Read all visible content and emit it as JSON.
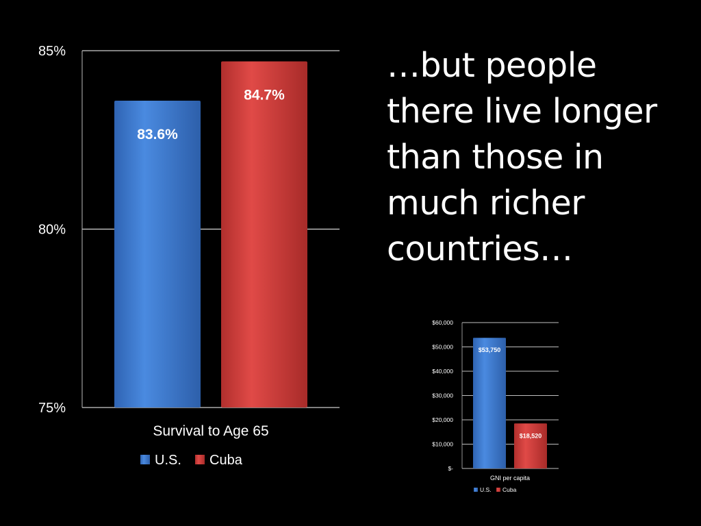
{
  "slide_text": {
    "lines": [
      "…but people",
      "there live longer",
      "than those in",
      "much richer",
      "countries…"
    ]
  },
  "colors": {
    "background": "#000000",
    "us_series": "#3f7fd6",
    "cuba_series": "#d64240",
    "text": "#ffffff",
    "gridline": "#ffffff"
  },
  "chart_data": [
    {
      "type": "bar",
      "title": "",
      "categories": [
        "Survival to Age 65"
      ],
      "series": [
        {
          "name": "U.S.",
          "values": [
            83.6
          ],
          "label": "83.6%"
        },
        {
          "name": "Cuba",
          "values": [
            84.7
          ],
          "label": "84.7%"
        }
      ],
      "xlabel": "",
      "ylabel": "",
      "ylim": [
        75,
        85
      ],
      "yticks": [
        "75%",
        "80%",
        "85%"
      ],
      "ytick_values": [
        75,
        80,
        85
      ],
      "grid": true,
      "legend": "bottom"
    },
    {
      "type": "bar",
      "title": "",
      "categories": [
        "GNI per capita"
      ],
      "series": [
        {
          "name": "U.S.",
          "values": [
            53750
          ],
          "label": "$53,750"
        },
        {
          "name": "Cuba",
          "values": [
            18520
          ],
          "label": "$18,520"
        }
      ],
      "xlabel": "",
      "ylabel": "",
      "ylim": [
        0,
        60000
      ],
      "yticks": [
        "$-",
        "$10,000",
        "$20,000",
        "$30,000",
        "$40,000",
        "$50,000",
        "$60,000"
      ],
      "ytick_values": [
        0,
        10000,
        20000,
        30000,
        40000,
        50000,
        60000
      ],
      "grid": true,
      "legend": "bottom"
    }
  ]
}
